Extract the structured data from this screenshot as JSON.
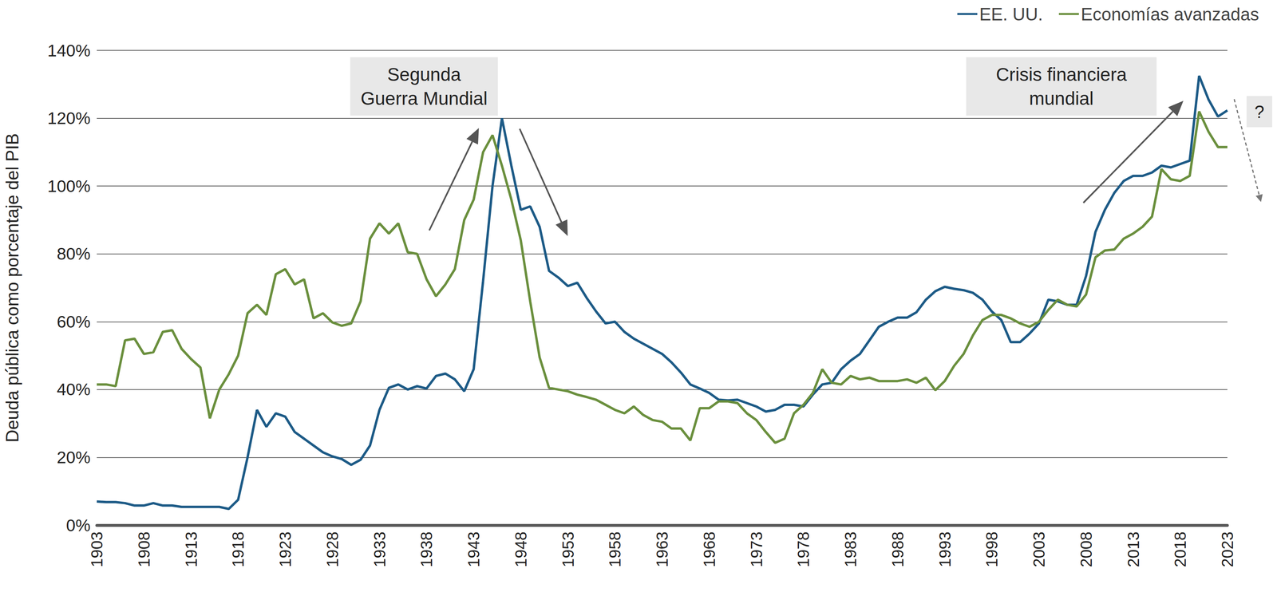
{
  "chart_data": {
    "type": "line",
    "y_label": "Deuda pública como porcentaje del PIB",
    "annotations": [
      "Segunda\nGuerra Mundial",
      "Crisis financiera\nmundial",
      "?"
    ],
    "x": [
      1903,
      1904,
      1905,
      1906,
      1907,
      1908,
      1909,
      1910,
      1911,
      1912,
      1913,
      1914,
      1915,
      1916,
      1917,
      1918,
      1919,
      1920,
      1921,
      1922,
      1923,
      1924,
      1925,
      1926,
      1927,
      1928,
      1929,
      1930,
      1931,
      1932,
      1933,
      1934,
      1935,
      1936,
      1937,
      1938,
      1939,
      1940,
      1941,
      1942,
      1943,
      1944,
      1945,
      1946,
      1947,
      1948,
      1949,
      1950,
      1951,
      1952,
      1953,
      1954,
      1955,
      1956,
      1957,
      1958,
      1959,
      1960,
      1961,
      1962,
      1963,
      1964,
      1965,
      1966,
      1967,
      1968,
      1969,
      1970,
      1971,
      1972,
      1973,
      1974,
      1975,
      1976,
      1977,
      1978,
      1979,
      1980,
      1981,
      1982,
      1983,
      1984,
      1985,
      1986,
      1987,
      1988,
      1989,
      1990,
      1991,
      1992,
      1993,
      1994,
      1995,
      1996,
      1997,
      1998,
      1999,
      2000,
      2001,
      2002,
      2003,
      2004,
      2005,
      2006,
      2007,
      2008,
      2009,
      2010,
      2011,
      2012,
      2013,
      2014,
      2015,
      2016,
      2017,
      2018,
      2019,
      2020,
      2021,
      2022,
      2023
    ],
    "xlim": [
      1903,
      2023
    ],
    "xticks": [
      1903,
      1908,
      1913,
      1918,
      1923,
      1928,
      1933,
      1938,
      1943,
      1948,
      1953,
      1958,
      1963,
      1968,
      1973,
      1978,
      1983,
      1988,
      1993,
      1998,
      2003,
      2008,
      2013,
      2018,
      2023
    ],
    "ylim": [
      0,
      140
    ],
    "yticks": [
      {
        "value": 0,
        "label": "0%"
      },
      {
        "value": 20,
        "label": "20%"
      },
      {
        "value": 40,
        "label": "40%"
      },
      {
        "value": 60,
        "label": "60%"
      },
      {
        "value": 80,
        "label": "80%"
      },
      {
        "value": 100,
        "label": "100%"
      },
      {
        "value": 120,
        "label": "120%"
      },
      {
        "value": 140,
        "label": "140%"
      }
    ],
    "grid": true,
    "legend": "top-right",
    "series": [
      {
        "name": "EE. UU.",
        "color": "#1c5a86",
        "values": [
          7,
          6.8,
          6.8,
          6.5,
          5.8,
          5.8,
          6.5,
          5.8,
          5.8,
          5.4,
          5.4,
          5.4,
          5.4,
          5.4,
          4.8,
          7.5,
          20,
          34,
          29,
          33,
          32,
          27.5,
          25.5,
          23.5,
          21.5,
          20.3,
          19.5,
          17.8,
          19.3,
          23.5,
          34,
          40.5,
          41.5,
          40,
          41,
          40.3,
          44,
          44.7,
          43,
          39.5,
          46,
          72,
          100,
          120,
          106,
          93,
          94,
          88,
          75,
          73,
          70.5,
          71.5,
          67,
          63,
          59.5,
          60,
          57,
          55,
          53.5,
          52,
          50.5,
          48,
          45,
          41.5,
          40.3,
          39,
          37,
          36.8,
          37,
          36,
          35,
          33.5,
          34,
          35.5,
          35.5,
          35,
          38.5,
          41.5,
          42,
          46,
          48.5,
          50.5,
          54.5,
          58.5,
          60,
          61.2,
          61.2,
          62.8,
          66.5,
          69,
          70.3,
          69.7,
          69.3,
          68.5,
          66.5,
          63,
          60.5,
          54,
          54,
          56.5,
          59.5,
          66.5,
          66,
          65,
          65,
          73.5,
          86.5,
          93,
          98,
          101.5,
          103,
          103,
          104,
          106,
          105.5,
          106.5,
          107.5,
          132.5,
          125.5,
          120.5,
          122.3
        ]
      },
      {
        "name": "Economías avanzadas",
        "color": "#6a8f3d",
        "values": [
          41.5,
          41.5,
          41,
          54.5,
          55,
          50.5,
          51,
          57,
          57.5,
          52,
          49,
          46.5,
          31.5,
          40,
          44.5,
          50,
          62.5,
          65,
          62,
          74,
          75.5,
          71,
          72.5,
          61,
          62.5,
          59.8,
          58.8,
          59.5,
          66,
          84.5,
          89,
          86,
          89,
          80.5,
          80,
          72.5,
          67.5,
          71,
          75.5,
          90,
          96,
          110,
          115,
          106,
          96,
          84,
          66,
          49.5,
          40.5,
          40,
          39.5,
          38.5,
          37.8,
          37,
          35.5,
          34,
          33,
          35,
          32.5,
          31,
          30.5,
          28.5,
          28.5,
          25,
          34.5,
          34.5,
          36.5,
          36.5,
          36,
          33,
          31,
          27.5,
          24.3,
          25.5,
          33,
          35.5,
          39,
          46,
          42,
          41.5,
          44,
          43,
          43.5,
          42.5,
          42.5,
          42.5,
          43,
          42,
          43.5,
          39.8,
          42.5,
          47,
          50.5,
          56,
          60.5,
          62,
          62,
          61,
          59.5,
          58.5,
          60,
          63.5,
          66.5,
          65,
          64.5,
          68,
          79,
          81,
          81.3,
          84.5,
          86,
          88,
          91,
          105,
          102,
          101.5,
          103,
          122,
          116,
          111.5,
          111.5
        ]
      }
    ]
  }
}
